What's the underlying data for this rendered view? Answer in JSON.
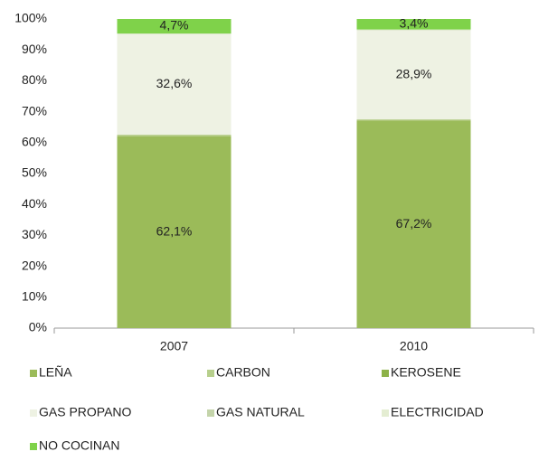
{
  "chart_data": {
    "type": "stacked_bar",
    "categories": [
      "2007",
      "2010"
    ],
    "ylim": [
      0,
      100
    ],
    "yticks": [
      {
        "value": 0,
        "label": "0%"
      },
      {
        "value": 10,
        "label": "10%"
      },
      {
        "value": 20,
        "label": "20%"
      },
      {
        "value": 30,
        "label": "30%"
      },
      {
        "value": 40,
        "label": "40%"
      },
      {
        "value": 50,
        "label": "50%"
      },
      {
        "value": 60,
        "label": "60%"
      },
      {
        "value": 70,
        "label": "70%"
      },
      {
        "value": 80,
        "label": "80%"
      },
      {
        "value": 90,
        "label": "90%"
      },
      {
        "value": 100,
        "label": "100%"
      }
    ],
    "legend": "bottom",
    "series": [
      {
        "name": "LEÑA",
        "color": "#9bbb59",
        "values": [
          62.1,
          67.2
        ],
        "value_labels": [
          "62,1%",
          "67,2%"
        ]
      },
      {
        "name": "CARBON",
        "color": "#b7cf8c",
        "values": [
          0.2,
          0.2
        ]
      },
      {
        "name": "KEROSENE",
        "color": "#8db248",
        "values": [
          0.2,
          0.1
        ]
      },
      {
        "name": "GAS PROPANO",
        "color": "#eef2e3",
        "values": [
          32.6,
          28.9
        ],
        "value_labels": [
          "32,6%",
          "28,9%"
        ]
      },
      {
        "name": "GAS NATURAL",
        "color": "#c4d4aa",
        "values": [
          0.1,
          0.1
        ]
      },
      {
        "name": "ELECTRICIDAD",
        "color": "#e4edd2",
        "values": [
          0.1,
          0.1
        ]
      },
      {
        "name": "NO COCINAN",
        "color": "#7fd24a",
        "values": [
          4.7,
          3.4
        ],
        "value_labels": [
          "4,7%",
          "3,4%"
        ]
      }
    ]
  }
}
